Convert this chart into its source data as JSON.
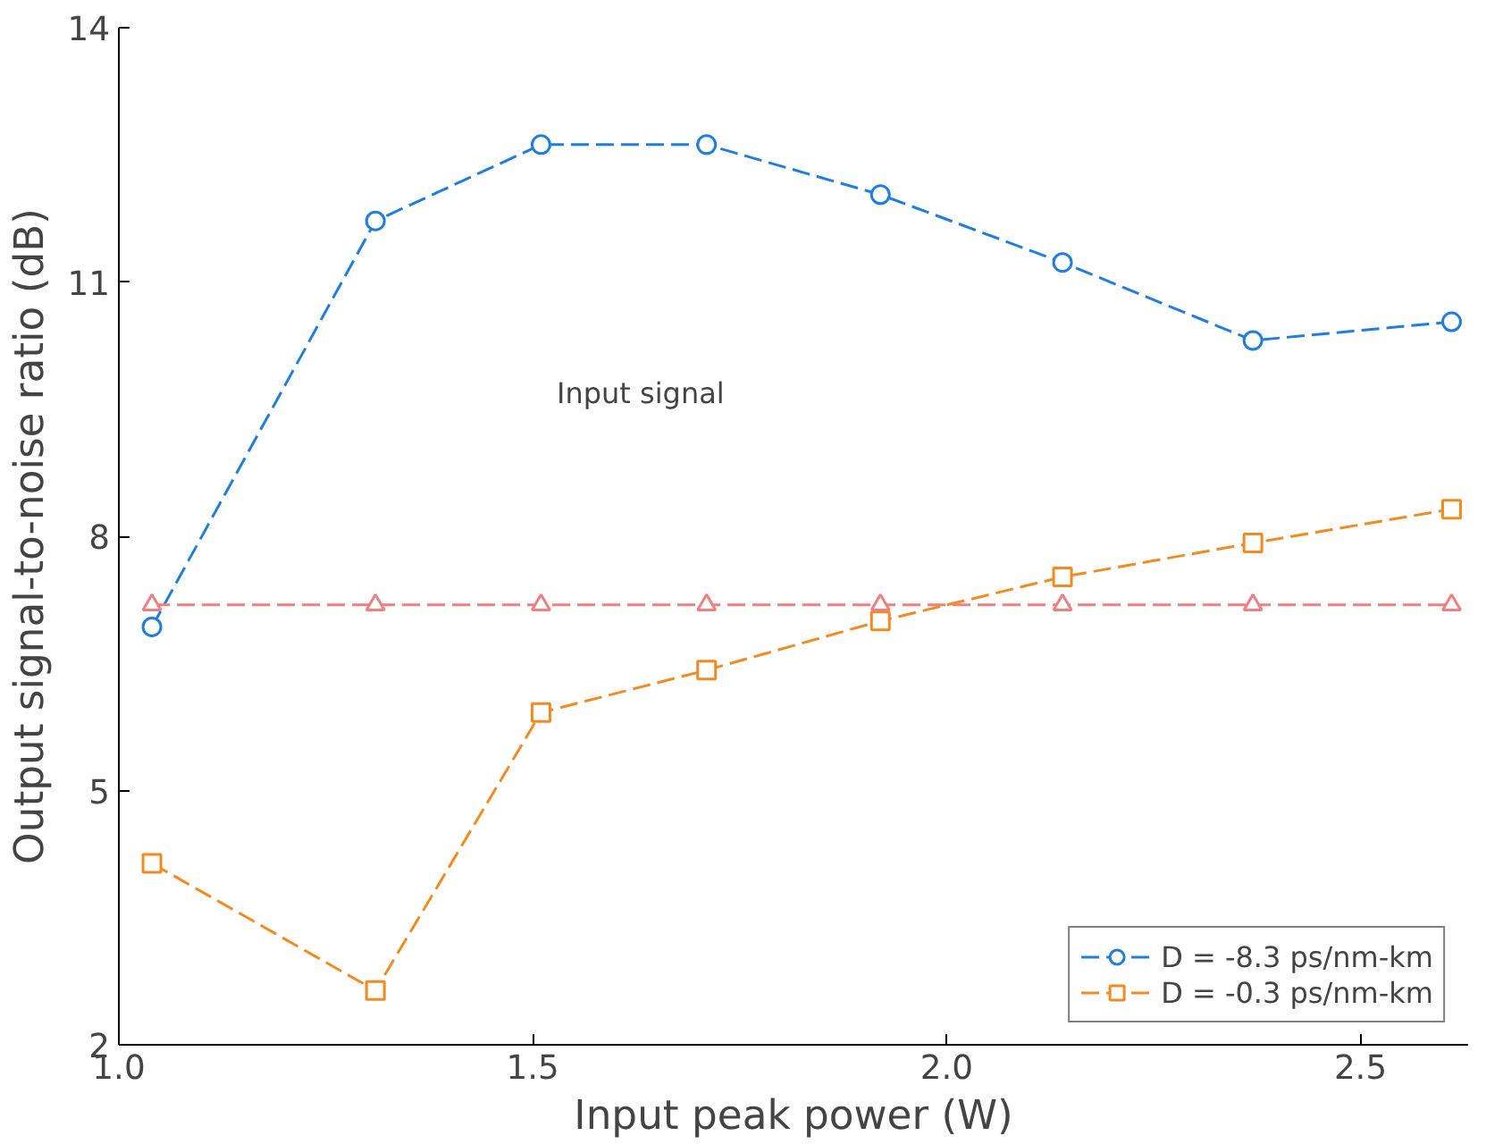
{
  "chart_data": {
    "type": "line",
    "xlabel": "Input peak power (W)",
    "ylabel": "Output signal-to-noise ratio (dB)",
    "x": [
      1.04,
      1.31,
      1.51,
      1.71,
      1.92,
      2.14,
      2.37,
      2.61
    ],
    "series": [
      {
        "name": "D = -8.3 ps/nm-km",
        "color": "#1f7fe0",
        "marker": "circle",
        "values": [
          6.93,
          11.72,
          12.62,
          12.62,
          12.03,
          11.23,
          10.31,
          10.53
        ]
      },
      {
        "name": "D = -0.3 ps/nm-km",
        "color": "#f58a1f",
        "marker": "square",
        "values": [
          4.14,
          2.64,
          5.92,
          6.42,
          7.0,
          7.52,
          7.92,
          8.32
        ]
      },
      {
        "color": "#f08080",
        "marker": "triangle",
        "values": [
          7.19,
          7.19,
          7.19,
          7.19,
          7.19,
          7.19,
          7.19,
          7.19
        ]
      }
    ],
    "annotations": [
      "Input signal"
    ],
    "xlim": [
      1.0,
      2.63
    ],
    "ylim": [
      2,
      14
    ],
    "xticks": [
      {
        "value": 1,
        "label": "1.0"
      },
      1.5,
      {
        "value": 2,
        "label": "2.0"
      },
      2.5
    ],
    "yticks": [
      2,
      5,
      8,
      11,
      14
    ],
    "grid": false,
    "legend": "bottom right",
    "line_style": "dashed"
  }
}
